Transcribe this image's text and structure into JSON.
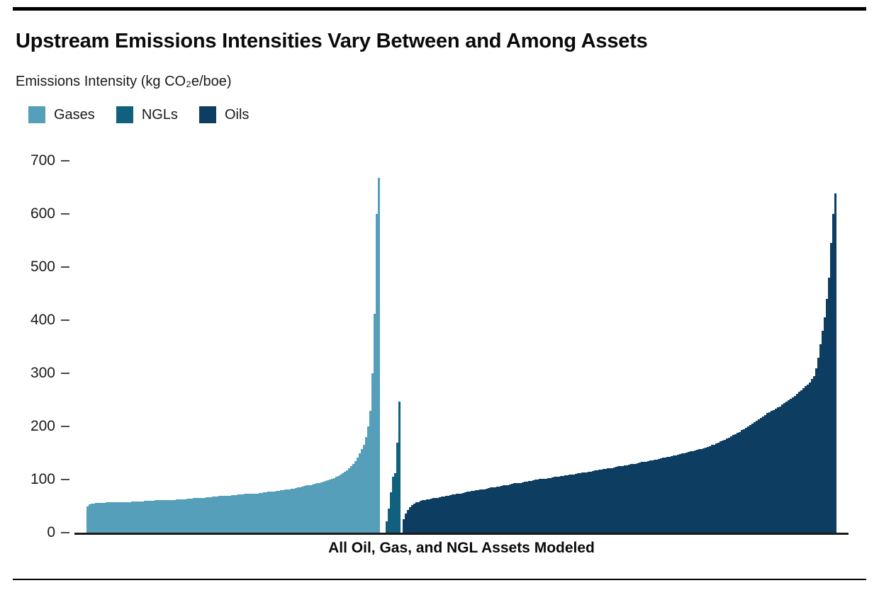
{
  "page": {
    "title": "Upstream Emissions Intensities Vary Between and Among Assets",
    "subtitle": "Emissions Intensity (kg CO₂e/boe)"
  },
  "legend": [
    {
      "label": "Gases",
      "color": "#559fba"
    },
    {
      "label": "NGLs",
      "color": "#10607e"
    },
    {
      "label": "Oils",
      "color": "#0d3e62"
    }
  ],
  "chart_data": {
    "type": "bar",
    "title": "Upstream Emissions Intensities Vary Between and Among Assets",
    "ylabel": "Emissions Intensity (kg CO₂e/boe)",
    "xlabel": "All Oil, Gas, and NGL Assets Modeled",
    "ylim": [
      0,
      700
    ],
    "yticks": [
      0,
      100,
      200,
      300,
      400,
      500,
      600,
      700
    ],
    "grid": false,
    "legend_position": "top-left",
    "bars_sorted": "ascending within each fuel group",
    "series": [
      {
        "name": "Gases",
        "color": "#559fba",
        "values": [
          49,
          54,
          55,
          55,
          56,
          56,
          56,
          56,
          56,
          57,
          57,
          57,
          57,
          57,
          58,
          58,
          58,
          58,
          58,
          58,
          58,
          59,
          59,
          59,
          59,
          59,
          59,
          60,
          60,
          60,
          60,
          60,
          61,
          61,
          61,
          61,
          61,
          62,
          62,
          62,
          62,
          62,
          63,
          63,
          63,
          63,
          63,
          64,
          64,
          64,
          65,
          65,
          65,
          66,
          66,
          66,
          67,
          67,
          67,
          68,
          68,
          68,
          69,
          69,
          69,
          69,
          70,
          70,
          71,
          71,
          71,
          72,
          72,
          72,
          73,
          73,
          73,
          73,
          73,
          74,
          74,
          75,
          75,
          76,
          76,
          77,
          77,
          78,
          78,
          79,
          79,
          80,
          80,
          81,
          81,
          82,
          83,
          83,
          84,
          85,
          86,
          87,
          88,
          89,
          89,
          90,
          91,
          92,
          93,
          94,
          95,
          96,
          97,
          99,
          100,
          102,
          103,
          105,
          107,
          110,
          112,
          115,
          118,
          121,
          125,
          130,
          135,
          142,
          150,
          157,
          165,
          180,
          200,
          230,
          300,
          412,
          600,
          668
        ]
      },
      {
        "name": "NGLs",
        "color": "#10607e",
        "values": [
          22,
          45,
          76,
          105,
          112,
          170,
          247
        ]
      },
      {
        "name": "Oils",
        "color": "#0d3e62",
        "values": [
          26,
          36,
          43,
          48,
          52,
          55,
          57,
          58,
          60,
          61,
          62,
          63,
          63,
          64,
          65,
          66,
          66,
          67,
          68,
          68,
          69,
          70,
          71,
          72,
          72,
          73,
          74,
          74,
          75,
          76,
          77,
          78,
          79,
          79,
          80,
          80,
          81,
          82,
          82,
          83,
          84,
          85,
          86,
          86,
          87,
          87,
          88,
          89,
          89,
          90,
          91,
          92,
          93,
          93,
          94,
          94,
          95,
          96,
          96,
          97,
          98,
          99,
          100,
          100,
          101,
          101,
          102,
          102,
          103,
          103,
          104,
          105,
          106,
          106,
          107,
          107,
          108,
          108,
          109,
          109,
          110,
          111,
          112,
          112,
          113,
          113,
          114,
          115,
          115,
          116,
          117,
          118,
          119,
          119,
          120,
          120,
          121,
          122,
          122,
          123,
          124,
          125,
          126,
          126,
          127,
          127,
          128,
          129,
          129,
          130,
          131,
          132,
          133,
          134,
          134,
          135,
          136,
          136,
          137,
          138,
          139,
          140,
          141,
          142,
          143,
          143,
          144,
          145,
          146,
          147,
          148,
          149,
          150,
          151,
          152,
          153,
          154,
          155,
          156,
          157,
          158,
          159,
          160,
          162,
          163,
          165,
          166,
          168,
          170,
          172,
          173,
          175,
          177,
          179,
          181,
          184,
          186,
          188,
          190,
          193,
          195,
          198,
          200,
          203,
          205,
          208,
          211,
          214,
          216,
          219,
          222,
          225,
          227,
          229,
          231,
          234,
          236,
          238,
          241,
          244,
          247,
          249,
          252,
          255,
          258,
          262,
          265,
          268,
          272,
          276,
          279,
          283,
          289,
          295,
          310,
          330,
          355,
          380,
          405,
          440,
          480,
          545,
          600,
          639
        ]
      }
    ]
  }
}
